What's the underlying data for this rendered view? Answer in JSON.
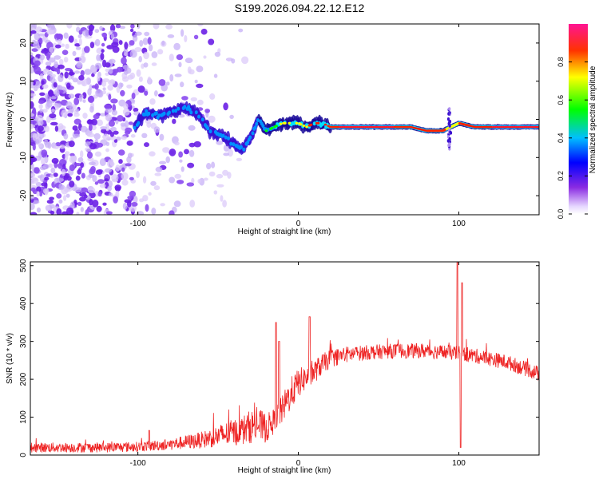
{
  "title": "S199.2026.094.22.12.E12",
  "colors": {
    "snr_line": "#ee2222",
    "speckle_purple": "#7a3cf0",
    "speckle_light": "#cbb4f7",
    "frame": "#000000",
    "background": "#ffffff"
  },
  "chart_data": [
    {
      "type": "heatmap",
      "name": "spectrogram",
      "xlabel": "Height of straight line (km)",
      "ylabel": "Frequency (Hz)",
      "xlim": [
        -167,
        150
      ],
      "ylim": [
        -25,
        25
      ],
      "x_ticks": [
        -100,
        0,
        100
      ],
      "x_tick_labels": [
        "-100",
        "0",
        "100"
      ],
      "y_ticks": [
        -20,
        -10,
        0,
        10,
        20
      ],
      "y_tick_labels": [
        "-20",
        "-10",
        "0",
        "10",
        "20"
      ],
      "colorbar": {
        "label": "Normalized spectral amplitude",
        "range": [
          0,
          1
        ],
        "ticks": [
          0.0,
          0.2,
          0.4,
          0.6,
          0.8
        ],
        "tick_labels": [
          "0.0",
          "0.2",
          "0.4",
          "0.6",
          "0.8"
        ],
        "colormap": [
          "#e6d7ff",
          "#8a2be2",
          "#0000ff",
          "#00ccff",
          "#00ff00",
          "#ffff00",
          "#ff0000"
        ]
      },
      "ridge": {
        "description_points_x": [
          -102,
          -95,
          -85,
          -78,
          -70,
          -62,
          -55,
          -48,
          -42,
          -35,
          -30,
          -25,
          -20,
          -15,
          -10,
          -5,
          0,
          5,
          10,
          15,
          20,
          30,
          50,
          70,
          80,
          90,
          95,
          100,
          110,
          130,
          150
        ],
        "freq_y": [
          -2,
          1.5,
          1,
          2,
          3,
          1,
          -3,
          -4,
          -6,
          -8,
          -5,
          0,
          -3,
          -2,
          -1,
          -1,
          -1,
          -2,
          -1,
          -1,
          -2,
          -2,
          -2,
          -2,
          -3,
          -3,
          -2,
          -1,
          -2,
          -2,
          -2
        ],
        "amplitude": [
          0.3,
          0.35,
          0.4,
          0.45,
          0.5,
          0.45,
          0.4,
          0.5,
          0.45,
          0.4,
          0.35,
          0.3,
          0.45,
          0.55,
          0.6,
          0.65,
          0.7,
          0.75,
          0.8,
          0.85,
          0.9,
          0.95,
          0.95,
          0.9,
          0.85,
          0.8,
          0.7,
          0.75,
          0.9,
          0.95,
          0.95
        ]
      },
      "speckle_region_x": [
        -167,
        -30
      ]
    },
    {
      "type": "line",
      "name": "snr",
      "xlabel": "Height of straight line (km)",
      "ylabel": "SNR (10 * v/v)",
      "xlim": [
        -167,
        150
      ],
      "ylim": [
        0,
        510
      ],
      "x_ticks": [
        -100,
        0,
        100
      ],
      "x_tick_labels": [
        "-100",
        "0",
        "100"
      ],
      "y_ticks": [
        0,
        100,
        200,
        300,
        400,
        500
      ],
      "y_tick_labels": [
        "0",
        "100",
        "200",
        "300",
        "400",
        "500"
      ],
      "trend": {
        "x": [
          -167,
          -140,
          -120,
          -100,
          -90,
          -80,
          -60,
          -45,
          -35,
          -30,
          -25,
          -20,
          -15,
          -10,
          -5,
          0,
          5,
          10,
          15,
          20,
          30,
          40,
          60,
          80,
          90,
          100,
          110,
          130,
          150
        ],
        "mean": [
          20,
          20,
          20,
          22,
          25,
          28,
          40,
          55,
          65,
          75,
          80,
          70,
          90,
          120,
          160,
          190,
          205,
          220,
          240,
          255,
          265,
          270,
          275,
          275,
          272,
          268,
          262,
          245,
          215
        ],
        "noise": [
          12,
          12,
          12,
          12,
          13,
          14,
          20,
          30,
          35,
          40,
          40,
          35,
          30,
          35,
          40,
          35,
          30,
          28,
          25,
          22,
          20,
          18,
          18,
          18,
          18,
          18,
          18,
          18,
          18
        ]
      },
      "spikes": [
        {
          "x": -93,
          "y": 65
        },
        {
          "x": -14,
          "y": 350
        },
        {
          "x": -12,
          "y": 300
        },
        {
          "x": 7,
          "y": 365
        },
        {
          "x": 99,
          "y": 510
        },
        {
          "x": 101,
          "y": 20
        },
        {
          "x": 102,
          "y": 455
        }
      ]
    }
  ]
}
